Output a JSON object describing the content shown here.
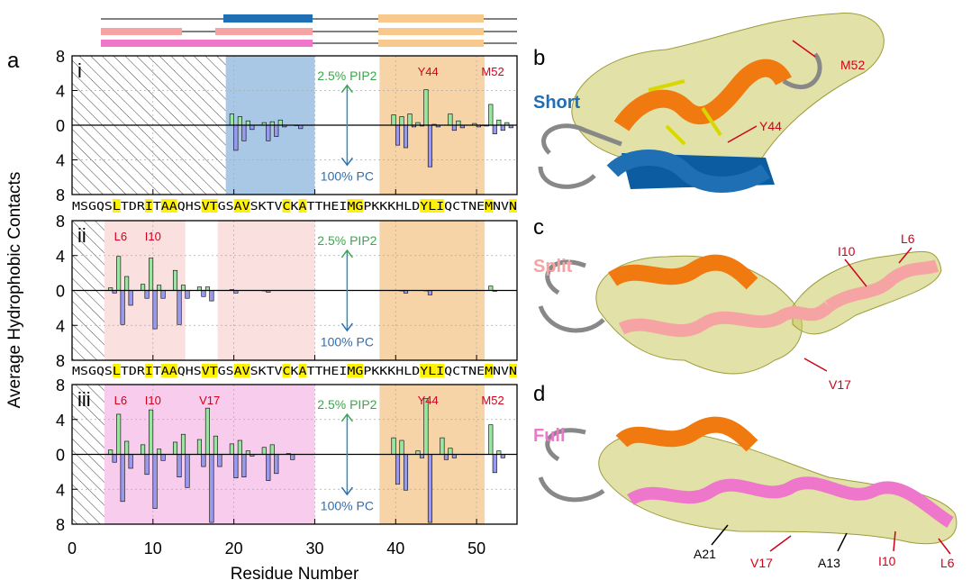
{
  "panels": {
    "a_letter": "a",
    "b_letter": "b",
    "c_letter": "c",
    "d_letter": "d"
  },
  "axes": {
    "ylabel": "Average Hydrophobic Contacts",
    "xlabel": "Residue Number",
    "xticks": [
      0,
      10,
      20,
      30,
      40,
      50
    ],
    "yticks_up": [
      8,
      4,
      0
    ],
    "yticks_down": [
      4,
      8
    ]
  },
  "annotations": {
    "pip2": "2.5% PIP2",
    "pc": "100% PC"
  },
  "sequence": "MSGQSLTDRITAAQHSVTGSAVSKTVCKATTHEIMGPKKKHLDYLIQCTNEMNVN",
  "colors": {
    "pip2": "#98e6a0",
    "pc": "#9999ee",
    "short_blue": "#1f6fb4",
    "short_blue_light": "#a8c8e6",
    "split_pink": "#f5a3a3",
    "split_pink_light": "#fbe0e0",
    "full_magenta": "#ee77cc",
    "full_magenta_light": "#f8ccec",
    "orange_light": "#f6d4a8",
    "orange_bar": "#f7c98c",
    "highlight_yellow": "#fff200",
    "label_red": "#d0021b",
    "helix_orange": "#f07a10",
    "helix_yellow_surface": "#c8c860"
  },
  "chart_data": [
    {
      "type": "bar",
      "panel": "i",
      "xlim": [
        0,
        55
      ],
      "ylim": [
        -8,
        8
      ],
      "hatch_range": [
        0,
        19
      ],
      "shaded_regions": [
        {
          "range": [
            19,
            30
          ],
          "color": "blue"
        },
        {
          "range": [
            38,
            51
          ],
          "color": "orange"
        }
      ],
      "residue_labels": [
        {
          "name": "Y44",
          "residue": 44
        },
        {
          "name": "M52",
          "residue": 52
        }
      ],
      "series": [
        {
          "name": "2.5% PIP2",
          "x": [
            20,
            21,
            22,
            24,
            25,
            26,
            28,
            40,
            41,
            42,
            43,
            44,
            45,
            47,
            48,
            50,
            51,
            52,
            53,
            54
          ],
          "values": [
            1.3,
            1.0,
            0.5,
            0.3,
            0.4,
            0.6,
            0.0,
            1.2,
            1.0,
            1.3,
            0.3,
            4.1,
            0.1,
            1.3,
            0.5,
            0.2,
            0.0,
            2.4,
            0.6,
            0.3
          ]
        },
        {
          "name": "100% PC",
          "x": [
            20,
            21,
            22,
            24,
            25,
            26,
            28,
            40,
            41,
            42,
            43,
            44,
            45,
            47,
            48,
            50,
            51,
            52,
            53,
            54
          ],
          "values": [
            -2.9,
            -1.8,
            -0.5,
            -1.8,
            -1.3,
            -0.2,
            -0.4,
            -2.3,
            -2.6,
            -0.2,
            -0.1,
            -4.8,
            -0.2,
            -0.6,
            -0.3,
            -0.2,
            -0.1,
            -1.0,
            -0.6,
            -0.3
          ]
        }
      ]
    },
    {
      "type": "bar",
      "panel": "ii",
      "xlim": [
        0,
        55
      ],
      "ylim": [
        -8,
        8
      ],
      "hatch_range": [
        0,
        4
      ],
      "shaded_regions": [
        {
          "range": [
            4,
            14
          ],
          "color": "pink"
        },
        {
          "range": [
            18,
            30
          ],
          "color": "pink"
        },
        {
          "range": [
            38,
            51
          ],
          "color": "orange"
        }
      ],
      "residue_labels": [
        {
          "name": "L6",
          "residue": 6
        },
        {
          "name": "I10",
          "residue": 10
        }
      ],
      "series": [
        {
          "name": "2.5% PIP2",
          "x": [
            5,
            6,
            7,
            9,
            10,
            11,
            13,
            14,
            16,
            17,
            20,
            24,
            41,
            44,
            52
          ],
          "values": [
            0.3,
            3.9,
            1.6,
            0.7,
            3.7,
            0.6,
            2.3,
            0.6,
            0.4,
            0.4,
            0.1,
            0.0,
            0.0,
            0.0,
            0.5
          ]
        },
        {
          "name": "100% PC",
          "x": [
            5,
            6,
            7,
            9,
            10,
            11,
            13,
            14,
            16,
            17,
            20,
            24,
            41,
            44,
            52
          ],
          "values": [
            -0.3,
            -3.9,
            -1.7,
            -0.9,
            -4.4,
            -0.9,
            -3.9,
            -0.9,
            -0.7,
            -1.2,
            -0.3,
            -0.2,
            -0.3,
            -0.5,
            -0.1
          ]
        }
      ]
    },
    {
      "type": "bar",
      "panel": "iii",
      "xlim": [
        0,
        55
      ],
      "ylim": [
        -8,
        8
      ],
      "hatch_range": [
        0,
        4
      ],
      "shaded_regions": [
        {
          "range": [
            4,
            30
          ],
          "color": "magenta"
        },
        {
          "range": [
            38,
            51
          ],
          "color": "orange"
        }
      ],
      "residue_labels": [
        {
          "name": "L6",
          "residue": 6
        },
        {
          "name": "I10",
          "residue": 10
        },
        {
          "name": "V17",
          "residue": 17
        },
        {
          "name": "Y44",
          "residue": 44
        },
        {
          "name": "M52",
          "residue": 52
        }
      ],
      "series": [
        {
          "name": "2.5% PIP2",
          "x": [
            5,
            6,
            7,
            9,
            10,
            11,
            13,
            14,
            16,
            17,
            18,
            20,
            21,
            22,
            24,
            25,
            27,
            40,
            41,
            43,
            44,
            46,
            47,
            52,
            53
          ],
          "values": [
            0.5,
            4.6,
            1.5,
            1.1,
            5.1,
            0.6,
            1.4,
            2.3,
            1.7,
            5.3,
            2.1,
            1.2,
            1.6,
            0.4,
            0.8,
            1.1,
            0.1,
            1.9,
            1.6,
            0.4,
            6.4,
            1.9,
            0.7,
            3.4,
            0.4
          ]
        },
        {
          "name": "100% PC",
          "x": [
            5,
            6,
            7,
            9,
            10,
            11,
            13,
            14,
            16,
            17,
            18,
            20,
            21,
            22,
            24,
            25,
            27,
            40,
            41,
            43,
            44,
            46,
            47,
            52,
            53
          ],
          "values": [
            -0.9,
            -5.4,
            -1.6,
            -2.3,
            -6.2,
            -0.7,
            -2.6,
            -3.8,
            -1.4,
            -7.8,
            -1.4,
            -2.7,
            -2.6,
            -0.2,
            -3.0,
            -2.2,
            -0.6,
            -3.4,
            -4.1,
            -0.4,
            -7.8,
            -0.6,
            -0.4,
            -2.1,
            -0.4
          ]
        }
      ]
    }
  ],
  "structures": {
    "b_label": "Short",
    "c_label": "Split",
    "d_label": "Full",
    "b_residues": [
      "M52",
      "Y44"
    ],
    "c_residues": [
      "L6",
      "I10",
      "V17"
    ],
    "d_residues_red": [
      "V17",
      "I10",
      "L6"
    ],
    "d_residues_black": [
      "A21",
      "A13"
    ]
  }
}
